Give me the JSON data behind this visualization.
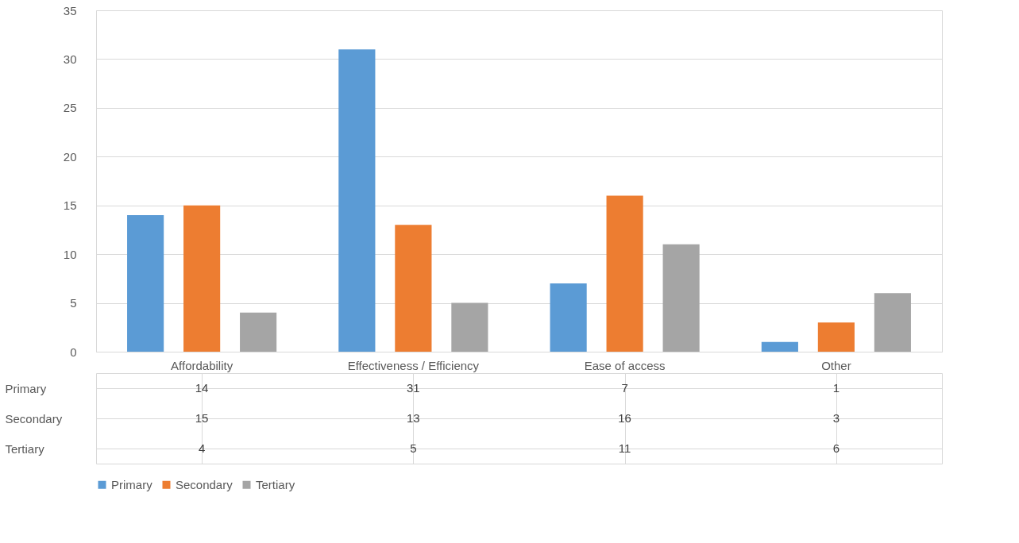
{
  "chart_data": {
    "type": "bar",
    "categories": [
      "Affordability",
      "Effectiveness / Efficiency",
      "Ease of access",
      "Other"
    ],
    "series": [
      {
        "name": "Primary",
        "color": "#5b9bd5",
        "values": [
          14,
          31,
          7,
          1
        ]
      },
      {
        "name": "Secondary",
        "color": "#ed7d31",
        "values": [
          15,
          13,
          16,
          3
        ]
      },
      {
        "name": "Tertiary",
        "color": "#a5a5a5",
        "values": [
          4,
          5,
          11,
          6
        ]
      }
    ],
    "ylim": [
      0,
      35
    ],
    "yticks": [
      0,
      5,
      10,
      15,
      20,
      25,
      30,
      35
    ],
    "grid": "y",
    "legend": "bottom",
    "data_labels": true
  }
}
